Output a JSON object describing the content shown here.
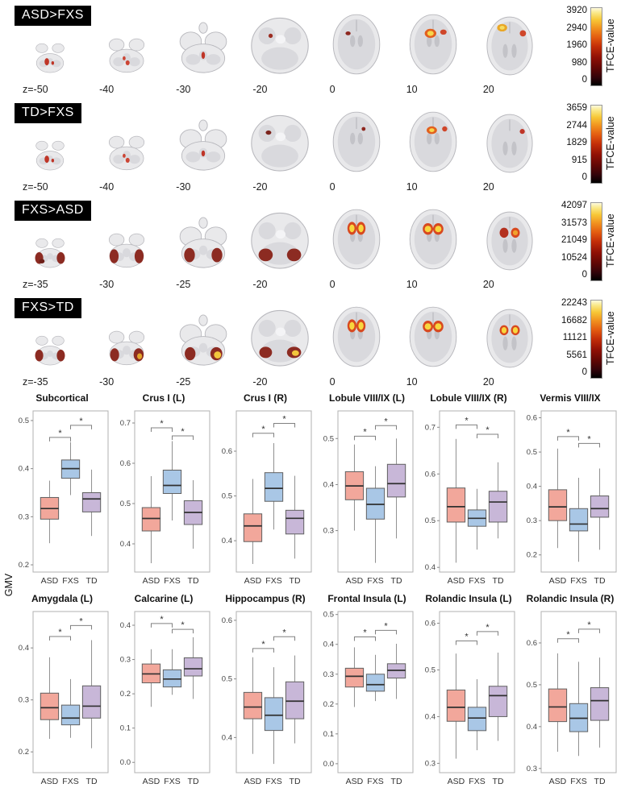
{
  "figure": {
    "gmv_label": "GMV",
    "groups": [
      "ASD",
      "FXS",
      "TD"
    ],
    "group_colors": {
      "ASD": "#F2A79B",
      "FXS": "#A9C7E6",
      "TD": "#C8B7D8"
    },
    "brain_rows": [
      {
        "label": "ASD>FXS",
        "overlay_style": "red1",
        "slice_labels": [
          "z=-50",
          "-40",
          "-30",
          "-20",
          "0",
          "10",
          "20"
        ],
        "colorbar": {
          "label": "TFCE-value",
          "ticks": [
            "3920",
            "2940",
            "1960",
            "980",
            "0"
          ]
        }
      },
      {
        "label": "TD>FXS",
        "overlay_style": "red2",
        "slice_labels": [
          "z=-50",
          "-40",
          "-30",
          "-20",
          "0",
          "10",
          "20"
        ],
        "colorbar": {
          "label": "TFCE-value",
          "ticks": [
            "3659",
            "2744",
            "1829",
            "915",
            "0"
          ]
        }
      },
      {
        "label": "FXS>ASD",
        "overlay_style": "cereb1",
        "slice_labels": [
          "z=-35",
          "-30",
          "-25",
          "-20",
          "0",
          "10",
          "20"
        ],
        "colorbar": {
          "label": "TFCE-value",
          "ticks": [
            "42097",
            "31573",
            "21049",
            "10524",
            "0"
          ]
        }
      },
      {
        "label": "FXS>TD",
        "overlay_style": "cereb2",
        "slice_labels": [
          "z=-35",
          "-30",
          "-25",
          "-20",
          "0",
          "10",
          "20"
        ],
        "colorbar": {
          "label": "TFCE-value",
          "ticks": [
            "22243",
            "16682",
            "11121",
            "5561",
            "0"
          ]
        }
      }
    ]
  },
  "chart_data": [
    {
      "type": "boxplot",
      "title": "Subcortical",
      "ylabel": "GMV",
      "groups": [
        "ASD",
        "FXS",
        "TD"
      ],
      "yticks": [
        "0.2",
        "0.3",
        "0.4",
        "0.5"
      ],
      "ylim": [
        0.185,
        0.52
      ],
      "stats": {
        "ASD": [
          0.245,
          0.295,
          0.317,
          0.34,
          0.375
        ],
        "FXS": [
          0.345,
          0.38,
          0.4,
          0.418,
          0.455
        ],
        "TD": [
          0.26,
          0.31,
          0.337,
          0.35,
          0.398
        ]
      },
      "sig": [
        {
          "pair": [
            0,
            1
          ],
          "y": 0.465,
          "label": "*"
        },
        {
          "pair": [
            1,
            2
          ],
          "y": 0.49,
          "label": "*"
        }
      ]
    },
    {
      "type": "boxplot",
      "title": "Crus I (L)",
      "ylabel": "GMV",
      "groups": [
        "ASD",
        "FXS",
        "TD"
      ],
      "yticks": [
        "0.4",
        "0.5",
        "0.6",
        "0.7"
      ],
      "ylim": [
        0.33,
        0.73
      ],
      "stats": {
        "ASD": [
          0.352,
          0.432,
          0.463,
          0.49,
          0.568
        ],
        "FXS": [
          0.458,
          0.525,
          0.545,
          0.583,
          0.655
        ],
        "TD": [
          0.388,
          0.448,
          0.478,
          0.507,
          0.558
        ]
      },
      "sig": [
        {
          "pair": [
            0,
            1
          ],
          "y": 0.688,
          "label": "*"
        },
        {
          "pair": [
            1,
            2
          ],
          "y": 0.668,
          "label": "*"
        }
      ]
    },
    {
      "type": "boxplot",
      "title": "Crus I (R)",
      "ylabel": "GMV",
      "groups": [
        "ASD",
        "FXS",
        "TD"
      ],
      "yticks": [
        "0.4",
        "0.5",
        "0.6"
      ],
      "ylim": [
        0.33,
        0.69
      ],
      "stats": {
        "ASD": [
          0.348,
          0.398,
          0.433,
          0.46,
          0.538
        ],
        "FXS": [
          0.425,
          0.488,
          0.517,
          0.552,
          0.618
        ],
        "TD": [
          0.36,
          0.415,
          0.45,
          0.468,
          0.545
        ]
      },
      "sig": [
        {
          "pair": [
            0,
            1
          ],
          "y": 0.64,
          "label": "*"
        },
        {
          "pair": [
            1,
            2
          ],
          "y": 0.662,
          "label": "*"
        }
      ]
    },
    {
      "type": "boxplot",
      "title": "Lobule VIII/IX (L)",
      "ylabel": "GMV",
      "groups": [
        "ASD",
        "FXS",
        "TD"
      ],
      "yticks": [
        "0.3",
        "0.4",
        "0.5"
      ],
      "ylim": [
        0.21,
        0.56
      ],
      "stats": {
        "ASD": [
          0.3,
          0.367,
          0.397,
          0.428,
          0.487
        ],
        "FXS": [
          0.23,
          0.325,
          0.357,
          0.392,
          0.44
        ],
        "TD": [
          0.283,
          0.373,
          0.402,
          0.444,
          0.5
        ]
      },
      "sig": [
        {
          "pair": [
            0,
            1
          ],
          "y": 0.505,
          "label": "*"
        },
        {
          "pair": [
            1,
            2
          ],
          "y": 0.528,
          "label": "*"
        }
      ]
    },
    {
      "type": "boxplot",
      "title": "Lobule VIII/IX (R)",
      "ylabel": "GMV",
      "groups": [
        "ASD",
        "FXS",
        "TD"
      ],
      "yticks": [
        "0.4",
        "0.5",
        "0.6",
        "0.7"
      ],
      "ylim": [
        0.39,
        0.735
      ],
      "stats": {
        "ASD": [
          0.41,
          0.497,
          0.53,
          0.57,
          0.675
        ],
        "FXS": [
          0.438,
          0.488,
          0.505,
          0.523,
          0.568
        ],
        "TD": [
          0.462,
          0.497,
          0.54,
          0.563,
          0.625
        ]
      },
      "sig": [
        {
          "pair": [
            0,
            1
          ],
          "y": 0.705,
          "label": "*"
        },
        {
          "pair": [
            1,
            2
          ],
          "y": 0.685,
          "label": "*"
        }
      ]
    },
    {
      "type": "boxplot",
      "title": "Vermis VIII/IX",
      "ylabel": "GMV",
      "groups": [
        "ASD",
        "FXS",
        "TD"
      ],
      "yticks": [
        "0.2",
        "0.3",
        "0.4",
        "0.5",
        "0.6"
      ],
      "ylim": [
        0.15,
        0.62
      ],
      "stats": {
        "ASD": [
          0.22,
          0.3,
          0.34,
          0.39,
          0.51
        ],
        "FXS": [
          0.18,
          0.27,
          0.29,
          0.335,
          0.425
        ],
        "TD": [
          0.215,
          0.31,
          0.335,
          0.372,
          0.452
        ]
      },
      "sig": [
        {
          "pair": [
            0,
            1
          ],
          "y": 0.545,
          "label": "*"
        },
        {
          "pair": [
            1,
            2
          ],
          "y": 0.525,
          "label": "*"
        }
      ]
    },
    {
      "type": "boxplot",
      "title": "Amygdala (L)",
      "ylabel": "GMV",
      "groups": [
        "ASD",
        "FXS",
        "TD"
      ],
      "yticks": [
        "0.2",
        "0.3",
        "0.4"
      ],
      "ylim": [
        0.16,
        0.47
      ],
      "stats": {
        "ASD": [
          0.225,
          0.262,
          0.285,
          0.313,
          0.382
        ],
        "FXS": [
          0.227,
          0.252,
          0.265,
          0.29,
          0.34
        ],
        "TD": [
          0.207,
          0.265,
          0.288,
          0.327,
          0.415
        ]
      },
      "sig": [
        {
          "pair": [
            0,
            1
          ],
          "y": 0.422,
          "label": "*"
        },
        {
          "pair": [
            1,
            2
          ],
          "y": 0.443,
          "label": "*"
        }
      ]
    },
    {
      "type": "boxplot",
      "title": "Calcarine (L)",
      "ylabel": "GMV",
      "groups": [
        "ASD",
        "FXS",
        "TD"
      ],
      "yticks": [
        "0.0",
        "0.1",
        "0.2",
        "0.3",
        "0.4"
      ],
      "ylim": [
        -0.03,
        0.44
      ],
      "stats": {
        "ASD": [
          0.162,
          0.232,
          0.258,
          0.287,
          0.33
        ],
        "FXS": [
          0.197,
          0.22,
          0.243,
          0.27,
          0.33
        ],
        "TD": [
          0.185,
          0.252,
          0.273,
          0.305,
          0.365
        ]
      },
      "sig": [
        {
          "pair": [
            0,
            1
          ],
          "y": 0.405,
          "label": "*"
        },
        {
          "pair": [
            1,
            2
          ],
          "y": 0.388,
          "label": "*"
        }
      ]
    },
    {
      "type": "boxplot",
      "title": "Hippocampus (R)",
      "ylabel": "GMV",
      "groups": [
        "ASD",
        "FXS",
        "TD"
      ],
      "yticks": [
        "0.4",
        "0.5",
        "0.6"
      ],
      "ylim": [
        0.34,
        0.615
      ],
      "stats": {
        "ASD": [
          0.372,
          0.432,
          0.452,
          0.477,
          0.537
        ],
        "FXS": [
          0.355,
          0.412,
          0.438,
          0.468,
          0.52
        ],
        "TD": [
          0.39,
          0.432,
          0.462,
          0.495,
          0.54
        ]
      },
      "sig": [
        {
          "pair": [
            0,
            1
          ],
          "y": 0.552,
          "label": "*"
        },
        {
          "pair": [
            1,
            2
          ],
          "y": 0.572,
          "label": "*"
        }
      ]
    },
    {
      "type": "boxplot",
      "title": "Frontal Insula (L)",
      "ylabel": "GMV",
      "groups": [
        "ASD",
        "FXS",
        "TD"
      ],
      "yticks": [
        "0.0",
        "0.1",
        "0.2",
        "0.3",
        "0.4",
        "0.5"
      ],
      "ylim": [
        -0.03,
        0.51
      ],
      "stats": {
        "ASD": [
          0.19,
          0.257,
          0.293,
          0.32,
          0.39
        ],
        "FXS": [
          0.21,
          0.243,
          0.265,
          0.3,
          0.365
        ],
        "TD": [
          0.217,
          0.287,
          0.313,
          0.335,
          0.402
        ]
      },
      "sig": [
        {
          "pair": [
            0,
            1
          ],
          "y": 0.425,
          "label": "*"
        },
        {
          "pair": [
            1,
            2
          ],
          "y": 0.447,
          "label": "*"
        }
      ]
    },
    {
      "type": "boxplot",
      "title": "Rolandic Insula (L)",
      "ylabel": "GMV",
      "groups": [
        "ASD",
        "FXS",
        "TD"
      ],
      "yticks": [
        "0.3",
        "0.4",
        "0.5",
        "0.6"
      ],
      "ylim": [
        0.28,
        0.625
      ],
      "stats": {
        "ASD": [
          0.31,
          0.39,
          0.42,
          0.457,
          0.535
        ],
        "FXS": [
          0.328,
          0.37,
          0.397,
          0.42,
          0.48
        ],
        "TD": [
          0.348,
          0.4,
          0.445,
          0.465,
          0.537
        ]
      },
      "sig": [
        {
          "pair": [
            0,
            1
          ],
          "y": 0.562,
          "label": "*"
        },
        {
          "pair": [
            1,
            2
          ],
          "y": 0.582,
          "label": "*"
        }
      ]
    },
    {
      "type": "boxplot",
      "title": "Rolandic Insula (R)",
      "ylabel": "GMV",
      "groups": [
        "ASD",
        "FXS",
        "TD"
      ],
      "yticks": [
        "0.3",
        "0.4",
        "0.5",
        "0.6"
      ],
      "ylim": [
        0.29,
        0.675
      ],
      "stats": {
        "ASD": [
          0.34,
          0.412,
          0.447,
          0.49,
          0.575
        ],
        "FXS": [
          0.33,
          0.388,
          0.42,
          0.455,
          0.555
        ],
        "TD": [
          0.35,
          0.415,
          0.462,
          0.493,
          0.565
        ]
      },
      "sig": [
        {
          "pair": [
            0,
            1
          ],
          "y": 0.61,
          "label": "*"
        },
        {
          "pair": [
            1,
            2
          ],
          "y": 0.633,
          "label": "*"
        }
      ]
    }
  ]
}
